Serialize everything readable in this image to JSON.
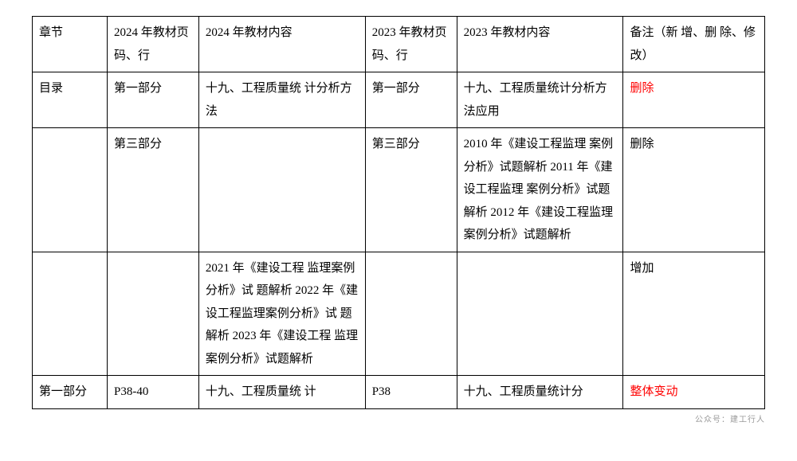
{
  "table": {
    "col_widths": [
      "90px",
      "110px",
      "200px",
      "110px",
      "200px",
      "170px"
    ],
    "header": {
      "c0": "章节",
      "c1": "2024 年教材页码、行",
      "c2": "2024 年教材内容",
      "c3": "2023 年教材页码、行",
      "c4": "2023 年教材内容",
      "c5": "备注（新 增、删 除、修 改）"
    },
    "rows": [
      {
        "c0": "目录",
        "c1": "第一部分",
        "c2": "十九、工程质量统 计分析方法",
        "c3": "第一部分",
        "c4": "十九、工程质量统计分析方法应用",
        "c5": "删除",
        "c5_red": true
      },
      {
        "c0": "",
        "c1": "第三部分",
        "c2": "",
        "c3": "第三部分",
        "c4": "2010 年《建设工程监理 案例分析》试题解析 2011 年《建设工程监理 案例分析》试题解析 2012 年《建设工程监理 案例分析》试题解析",
        "c5": "删除",
        "c5_red": false
      },
      {
        "c0": "",
        "c1": "",
        "c2": "2021 年《建设工程 监理案例分析》试 题解析 2022 年《建设工程监理案例分析》试 题解析 2023 年《建设工程 监理案例分析》试题解析",
        "c3": "",
        "c4": "",
        "c5": "增加",
        "c5_red": false
      },
      {
        "c0": "第一部分",
        "c1": "P38-40",
        "c2": "十九、工程质量统 计",
        "c3": "P38",
        "c4": "十九、工程质量统计分",
        "c5": "整体变动",
        "c5_red": true
      }
    ]
  },
  "footer": "公众号：建工行人"
}
